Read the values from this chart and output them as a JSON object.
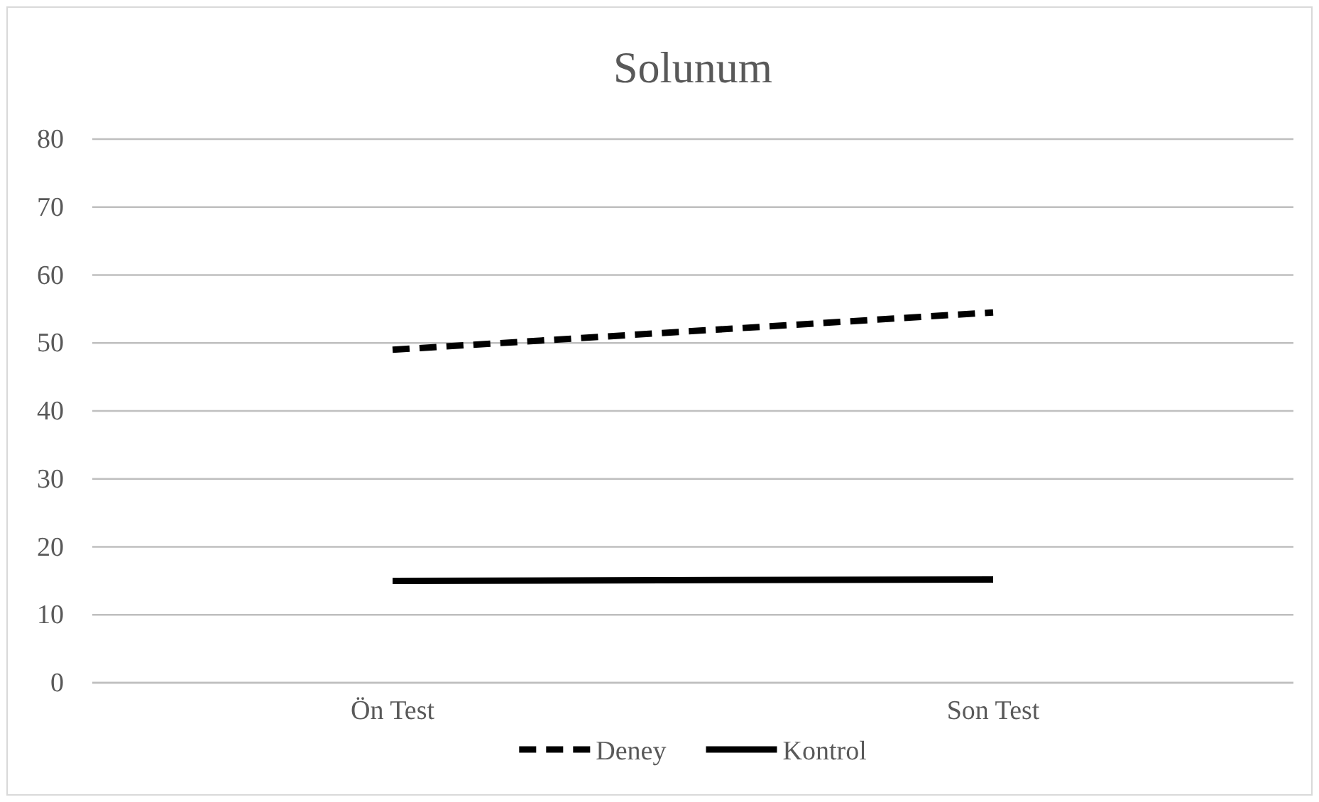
{
  "chart_data": {
    "type": "line",
    "title": "Solunum",
    "categories": [
      "Ön Test",
      "Son Test"
    ],
    "series": [
      {
        "name": "Deney",
        "color": "#000000",
        "values": [
          49,
          54.5
        ],
        "line_style": "dashed"
      },
      {
        "name": "Kontrol",
        "color": "#000000",
        "values": [
          15,
          15.2
        ],
        "line_style": "solid"
      }
    ],
    "ylim": [
      0,
      80
    ],
    "yticks": [
      0,
      10,
      20,
      30,
      40,
      50,
      60,
      70,
      80
    ],
    "grid": "y",
    "legend": "bottom",
    "marker": "none"
  }
}
